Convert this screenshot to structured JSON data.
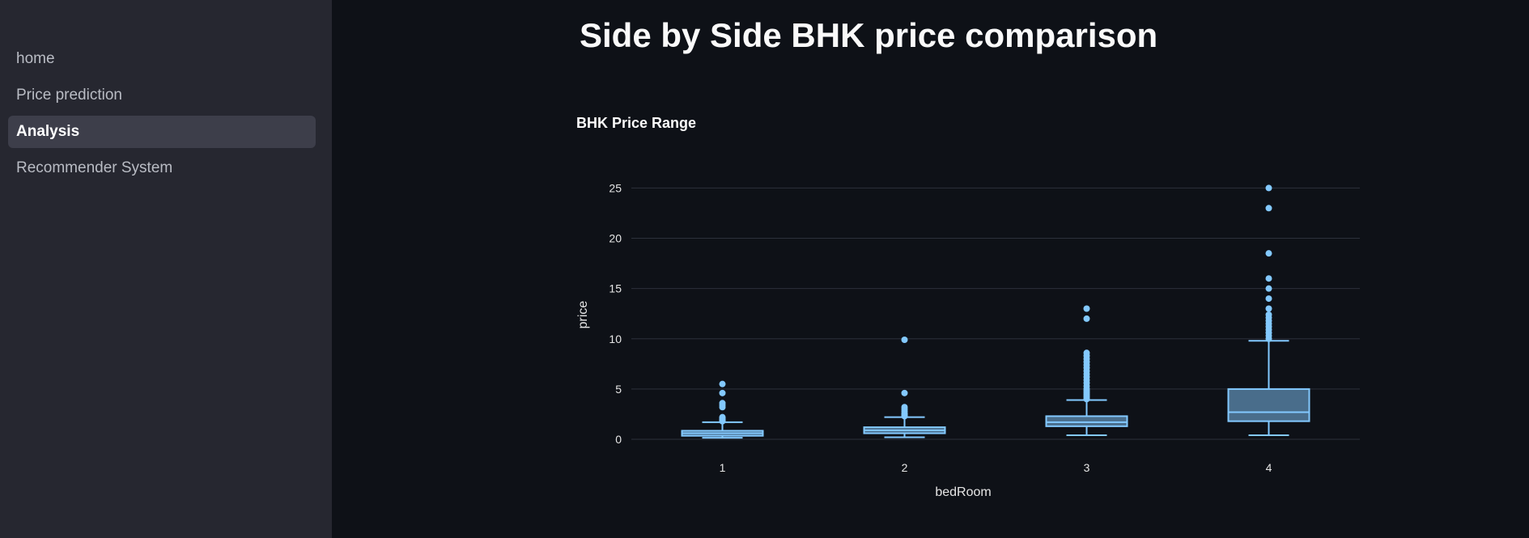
{
  "sidebar": {
    "items": [
      {
        "label": "home",
        "active": false
      },
      {
        "label": "Price prediction",
        "active": false
      },
      {
        "label": "Analysis",
        "active": true
      },
      {
        "label": "Recommender System",
        "active": false
      }
    ]
  },
  "main": {
    "title": "Side by Side BHK price comparison"
  },
  "colors": {
    "background": "#0e1117",
    "sidebar": "#262730",
    "accent": "#83c9ff"
  },
  "chart_data": {
    "type": "box",
    "title": "BHK Price Range",
    "xlabel": "bedRoom",
    "ylabel": "price",
    "categories": [
      "1",
      "2",
      "3",
      "4"
    ],
    "ylim": [
      0,
      26
    ],
    "yticks": [
      0,
      5,
      10,
      15,
      20,
      25
    ],
    "grid": true,
    "series": [
      {
        "category": "1",
        "min": 0.15,
        "q1": 0.35,
        "median": 0.6,
        "q3": 0.85,
        "max": 1.7,
        "outliers": [
          1.8,
          1.9,
          2.0,
          2.1,
          2.2,
          3.2,
          3.4,
          3.6,
          4.6,
          5.5
        ]
      },
      {
        "category": "2",
        "min": 0.2,
        "q1": 0.6,
        "median": 0.9,
        "q3": 1.2,
        "max": 2.2,
        "outliers": [
          2.3,
          2.4,
          2.5,
          2.6,
          2.8,
          3.0,
          3.2,
          4.6,
          9.9
        ]
      },
      {
        "category": "3",
        "min": 0.4,
        "q1": 1.3,
        "median": 1.7,
        "q3": 2.3,
        "max": 3.9,
        "outliers": [
          4.0,
          4.2,
          4.4,
          4.6,
          4.8,
          5.0,
          5.3,
          5.6,
          5.9,
          6.2,
          6.5,
          6.8,
          7.1,
          7.4,
          7.7,
          8.0,
          8.3,
          8.6,
          12.0,
          13.0
        ]
      },
      {
        "category": "4",
        "min": 0.4,
        "q1": 1.8,
        "median": 2.7,
        "q3": 5.0,
        "max": 9.8,
        "outliers": [
          10.0,
          10.3,
          10.6,
          10.9,
          11.2,
          11.5,
          11.8,
          12.1,
          12.4,
          13.0,
          14.0,
          15.0,
          16.0,
          18.5,
          23.0,
          25.0
        ]
      }
    ]
  }
}
